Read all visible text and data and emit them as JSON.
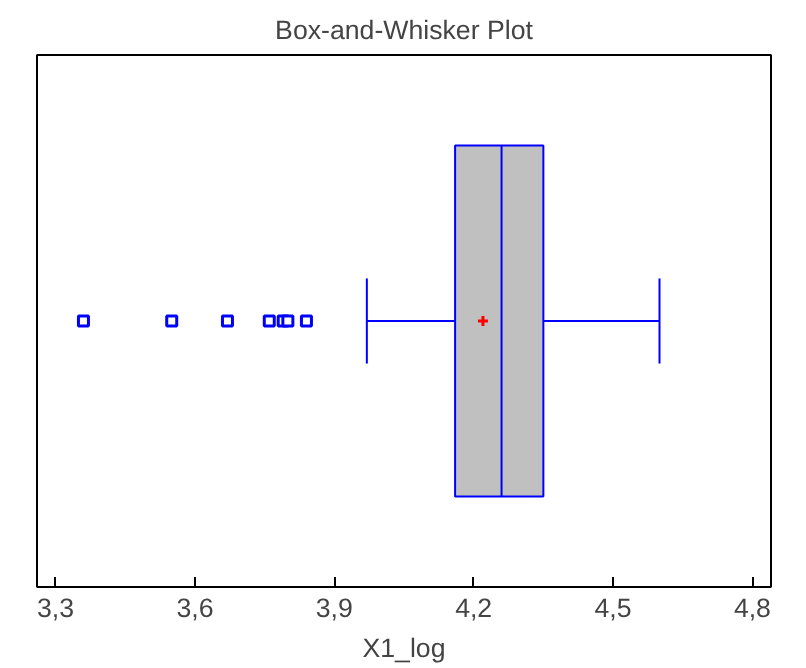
{
  "chart_data": {
    "type": "box",
    "title": "Box-and-Whisker Plot",
    "xlabel": "X1_log",
    "orientation": "horizontal",
    "categories": [
      null
    ],
    "color": "#c0c0c0",
    "tick_labels": "x",
    "boxes": [
      {
        "low": 3.97,
        "q1": 4.16,
        "median": 4.26,
        "q3": 4.35,
        "high": 4.6,
        "mean": 4.22,
        "outliers": [
          3.36,
          3.55,
          3.67,
          3.76,
          3.79,
          3.8,
          3.84
        ]
      }
    ],
    "xlim": [
      3.26,
      4.84
    ],
    "xticks": [
      {
        "value": 3.3,
        "label": "3,3"
      },
      {
        "value": 3.6,
        "label": "3,6"
      },
      {
        "value": 3.9,
        "label": "3,9"
      },
      {
        "value": 4.2,
        "label": "4,2"
      },
      {
        "value": 4.5,
        "label": "4,5"
      },
      {
        "value": 4.8,
        "label": "4,8"
      }
    ]
  }
}
